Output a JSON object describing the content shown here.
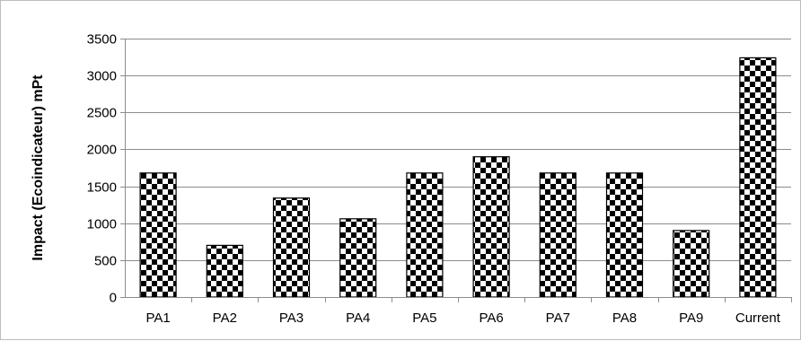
{
  "chart_data": {
    "type": "bar",
    "categories": [
      "PA1",
      "PA2",
      "PA3",
      "PA4",
      "PA5",
      "PA6",
      "PA7",
      "PA8",
      "PA9",
      "Current"
    ],
    "values": [
      1680,
      700,
      1340,
      1060,
      1680,
      1900,
      1680,
      1680,
      900,
      3240
    ],
    "title": "",
    "xlabel": "",
    "ylabel": "Impact (Ecoindicateur) mPt",
    "ylim": [
      0,
      3500
    ],
    "yticks": [
      0,
      500,
      1000,
      1500,
      2000,
      2500,
      3000,
      3500
    ],
    "grid": true,
    "bar_fill": "checkerboard",
    "colors": {
      "bar_dark": "#000000",
      "bar_light": "#ffffff",
      "grid": "#8c8c8c",
      "frame": "#bdbdbd"
    }
  }
}
